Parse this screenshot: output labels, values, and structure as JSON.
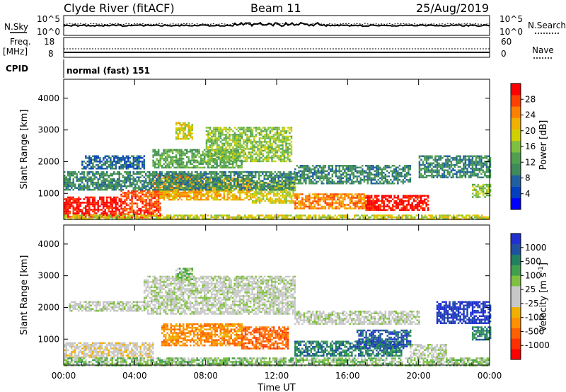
{
  "header": {
    "station": "Clyde River (fitACF)",
    "beam": "Beam 11",
    "date": "25/Aug/2019"
  },
  "top_panels": {
    "nsky_label": "N.Sky",
    "nsearch_label": "N.Search",
    "noise_ticks": [
      "10^5",
      "10^0"
    ],
    "freq_label": "Freq.",
    "freq_unit": "[MHz]",
    "nave_label": "Nave",
    "freq_ticks": [
      "18",
      "8"
    ],
    "nave_ticks": [
      "60",
      "0"
    ],
    "cpid_label": "CPID",
    "cpid_text": "normal (fast) 151"
  },
  "chart_data": [
    {
      "type": "heatmap",
      "title": "",
      "xlabel": "Time UT",
      "ylabel": "Slant Range [km]",
      "xlim_hours": [
        0,
        24
      ],
      "ylim_km": [
        180,
        4600
      ],
      "x_ticks": [
        "00:00",
        "04:00",
        "08:00",
        "12:00",
        "16:00",
        "20:00",
        "00:00"
      ],
      "y_ticks": [
        1000,
        2000,
        3000,
        4000
      ],
      "colorbar": {
        "label": "Power [dB]",
        "ticks": [
          "28",
          "24",
          "20",
          "16",
          "12",
          "8",
          "4"
        ],
        "colors": [
          "#0000ff",
          "#0040c0",
          "#2060a0",
          "#408a5a",
          "#50a050",
          "#80c040",
          "#d0d000",
          "#f0b000",
          "#ff8000",
          "#ff4000",
          "#ff0000"
        ]
      },
      "regions": [
        {
          "t0": 0.0,
          "t1": 3.2,
          "r0": 250,
          "r1": 900,
          "level": 10
        },
        {
          "t0": 3.2,
          "t1": 5.4,
          "r0": 250,
          "r1": 1100,
          "level": 9
        },
        {
          "t0": 5.0,
          "t1": 7.5,
          "r0": 900,
          "r1": 1600,
          "level": 8
        },
        {
          "t0": 5.4,
          "t1": 10.5,
          "r0": 800,
          "r1": 1500,
          "level": 7
        },
        {
          "t0": 10.5,
          "t1": 13.0,
          "r0": 700,
          "r1": 1400,
          "level": 6
        },
        {
          "t0": 13.0,
          "t1": 17.0,
          "r0": 500,
          "r1": 1000,
          "level": 8
        },
        {
          "t0": 17.0,
          "t1": 20.5,
          "r0": 450,
          "r1": 950,
          "level": 10
        },
        {
          "t0": 0.0,
          "t1": 13.0,
          "r0": 1100,
          "r1": 1700,
          "level": 3
        },
        {
          "t0": 5.0,
          "t1": 10.0,
          "r0": 1800,
          "r1": 2400,
          "level": 4
        },
        {
          "t0": 8.0,
          "t1": 12.8,
          "r0": 2000,
          "r1": 3100,
          "level": 5
        },
        {
          "t0": 6.3,
          "t1": 7.2,
          "r0": 2700,
          "r1": 3250,
          "level": 6
        },
        {
          "t0": 13.0,
          "t1": 19.5,
          "r0": 1300,
          "r1": 1900,
          "level": 3
        },
        {
          "t0": 1.0,
          "t1": 4.5,
          "r0": 1800,
          "r1": 2200,
          "level": 2
        },
        {
          "t0": 20.0,
          "t1": 24.0,
          "r0": 1500,
          "r1": 2200,
          "level": 3
        },
        {
          "t0": 23.0,
          "t1": 24.0,
          "r0": 900,
          "r1": 1300,
          "level": 5
        },
        {
          "t0": 0.0,
          "t1": 24.0,
          "r0": 180,
          "r1": 330,
          "level": 6
        }
      ]
    },
    {
      "type": "heatmap",
      "title": "",
      "xlabel": "Time UT",
      "ylabel": "Slant Range [km]",
      "xlim_hours": [
        0,
        24
      ],
      "ylim_km": [
        180,
        4600
      ],
      "x_ticks": [
        "00:00",
        "04:00",
        "08:00",
        "12:00",
        "16:00",
        "20:00",
        "00:00"
      ],
      "y_ticks": [
        1000,
        2000,
        3000,
        4000
      ],
      "colorbar": {
        "label": "Velocity [m s-1]",
        "label_sup": "-1",
        "ticks": [
          "1000",
          "500",
          "100",
          "25",
          "-25",
          "-100",
          "-500",
          "-1000"
        ],
        "colors": [
          "#ff0000",
          "#ff3000",
          "#ff6000",
          "#ff9000",
          "#f0b000",
          "#c8c8c8",
          "#c8c8c8",
          "#80c040",
          "#40a050",
          "#208060",
          "#2050a0",
          "#2030d0"
        ]
      },
      "regions": [
        {
          "t0": 0.0,
          "t1": 5.0,
          "r0": 400,
          "r1": 900,
          "level": 5
        },
        {
          "t0": 0.0,
          "t1": 24.0,
          "r0": 180,
          "r1": 420,
          "level": 7
        },
        {
          "t0": 5.5,
          "t1": 10.0,
          "r0": 800,
          "r1": 1500,
          "level": 3
        },
        {
          "t0": 10.0,
          "t1": 12.6,
          "r0": 700,
          "r1": 1400,
          "level": 2
        },
        {
          "t0": 13.0,
          "t1": 19.0,
          "r0": 500,
          "r1": 950,
          "level": 9
        },
        {
          "t0": 16.5,
          "t1": 19.5,
          "r0": 700,
          "r1": 1300,
          "level": 10
        },
        {
          "t0": 19.5,
          "t1": 21.5,
          "r0": 450,
          "r1": 850,
          "level": 6
        },
        {
          "t0": 4.5,
          "t1": 13.0,
          "r0": 1800,
          "r1": 3000,
          "level": 6
        },
        {
          "t0": 13.0,
          "t1": 20.0,
          "r0": 1500,
          "r1": 1900,
          "level": 6
        },
        {
          "t0": 21.0,
          "t1": 24.0,
          "r0": 1500,
          "r1": 2200,
          "level": 11
        },
        {
          "t0": 0.3,
          "t1": 4.5,
          "r0": 1900,
          "r1": 2200,
          "level": 6
        },
        {
          "t0": 6.3,
          "t1": 7.2,
          "r0": 2900,
          "r1": 3250,
          "level": 7
        },
        {
          "t0": 23.0,
          "t1": 24.0,
          "r0": 1000,
          "r1": 1400,
          "level": 9
        }
      ]
    }
  ]
}
